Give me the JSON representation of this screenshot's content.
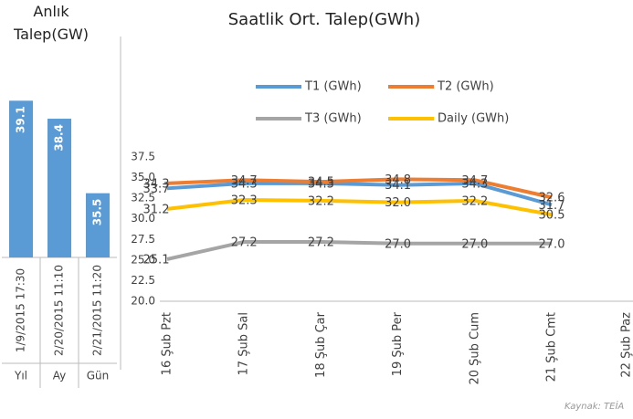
{
  "chart_data": [
    {
      "type": "bar",
      "title": "Anlık Talep(GW)",
      "categories": [
        "1/9/2015 17:30",
        "2/20/2015 11:10",
        "2/21/2015 11:20"
      ],
      "groups": [
        "Yıl",
        "Ay",
        "Gün"
      ],
      "values": [
        39.1,
        38.4,
        35.5
      ],
      "color": "#5b9bd5",
      "ylim": [
        33,
        40
      ]
    },
    {
      "type": "line",
      "title": "Saatlik Ort. Talep(GWh)",
      "categories": [
        "16 Şub Pzt",
        "17 Şub Sal",
        "18 Şub Çar",
        "19 Şub Per",
        "20 Şub Cum",
        "21 Şub Cmt",
        "22 Şub Paz"
      ],
      "series": [
        {
          "name": "T1 (GWh)",
          "color": "#5b9bd5",
          "values": [
            33.7,
            34.3,
            34.3,
            34.1,
            34.3,
            31.7,
            null
          ],
          "value_labels": [
            "33.7",
            "34.3",
            "34.3",
            "34.1",
            "34.3",
            "31.7",
            null
          ]
        },
        {
          "name": "T2 (GWh)",
          "color": "#ed7d31",
          "values": [
            34.3,
            34.7,
            34.5,
            34.8,
            34.7,
            32.6,
            null
          ],
          "value_labels": [
            "34.3",
            "34.7",
            "34.5",
            "34.8",
            "34.7",
            "32.6",
            null
          ]
        },
        {
          "name": "T3 (GWh)",
          "color": "#a5a5a5",
          "values": [
            25.1,
            27.2,
            27.2,
            27.0,
            27.0,
            27.0,
            null
          ],
          "value_labels": [
            "25.1",
            "27.2",
            "27.2",
            "27.0",
            "27.0",
            "27.0",
            null
          ]
        },
        {
          "name": "Daily (GWh)",
          "color": "#ffc000",
          "values": [
            31.2,
            32.3,
            32.2,
            32.0,
            32.2,
            30.5,
            null
          ],
          "value_labels": [
            "31.2",
            "32.3",
            "32.2",
            "32.0",
            "32.2",
            "30.5",
            null
          ]
        }
      ],
      "ylim": [
        20,
        37.5
      ],
      "yticks": [
        {
          "value": 20,
          "label": "20.0"
        },
        22.5,
        {
          "value": 25,
          "label": "25.0"
        },
        27.5,
        {
          "value": 30,
          "label": "30.0"
        },
        32.5,
        {
          "value": 35,
          "label": "35.0"
        },
        37.5
      ],
      "grid": false
    }
  ],
  "source": "Kaynak: TEİA"
}
